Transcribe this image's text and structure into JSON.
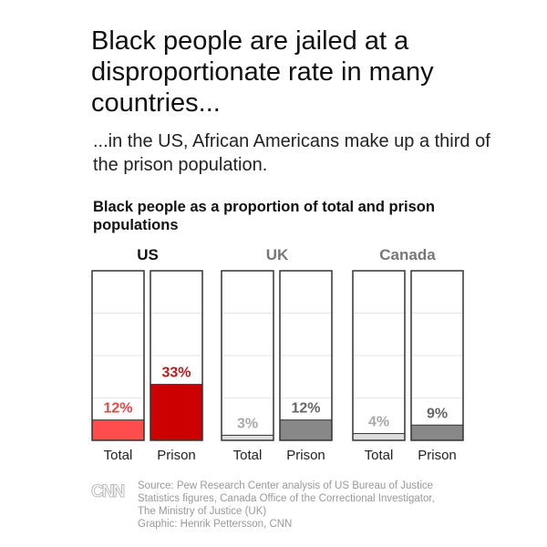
{
  "title": "Black people are jailed at a disproportionate rate in many countries...",
  "subtitle": "...in the US, African Americans make up a third of the prison population.",
  "chart_data": {
    "type": "bar",
    "title": "Black people as a proportion of total and prison populations",
    "ylim": [
      0,
      100
    ],
    "grid": true,
    "categories": [
      "Total",
      "Prison"
    ],
    "groups": [
      {
        "name": "US",
        "values": [
          12,
          33
        ],
        "labels": [
          "12%",
          "33%"
        ],
        "fill": [
          "#ff4d4d",
          "#cc0000"
        ],
        "label_color": [
          "#ee4444",
          "#b51c1c"
        ],
        "title_color": "#111111"
      },
      {
        "name": "UK",
        "values": [
          3,
          12
        ],
        "labels": [
          "3%",
          "12%"
        ],
        "fill": [
          "#dddddd",
          "#888888"
        ],
        "label_color": [
          "#aaaaaa",
          "#666666"
        ],
        "title_color": "#777777"
      },
      {
        "name": "Canada",
        "values": [
          4,
          9
        ],
        "labels": [
          "4%",
          "9%"
        ],
        "fill": [
          "#dddddd",
          "#888888"
        ],
        "label_color": [
          "#aaaaaa",
          "#666666"
        ],
        "title_color": "#777777"
      }
    ]
  },
  "footer": {
    "logo": "CNN",
    "source_lines": [
      "Source: Pew Research Center analysis of US Bureau of Justice",
      "Statistics figures, Canada Office of the Correctional Investigator,",
      "The Ministry of Justice (UK)",
      "Graphic: Henrik Pettersson, CNN"
    ]
  }
}
